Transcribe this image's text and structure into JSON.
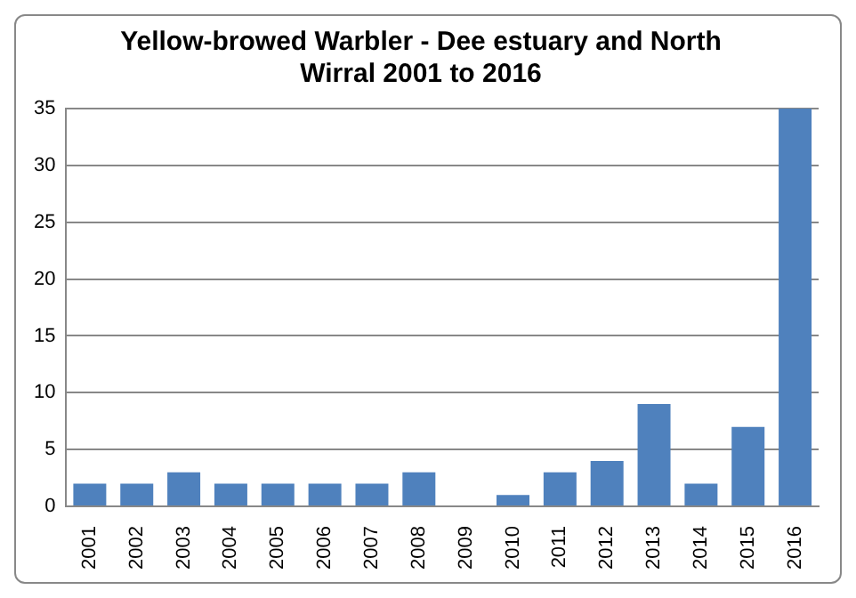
{
  "chart_data": {
    "type": "bar",
    "title": "Yellow-browed Warbler - Dee estuary and North Wirral 2001 to 2016",
    "categories": [
      "2001",
      "2002",
      "2003",
      "2004",
      "2005",
      "2006",
      "2007",
      "2008",
      "2009",
      "2010",
      "2011",
      "2012",
      "2013",
      "2014",
      "2015",
      "2016"
    ],
    "values": [
      2,
      2,
      3,
      2,
      2,
      2,
      2,
      3,
      0,
      1,
      3,
      4,
      9,
      2,
      7,
      35
    ],
    "color": "#4f81bd",
    "ylim": [
      0,
      35
    ],
    "yticks": [
      0,
      5,
      10,
      15,
      20,
      25,
      30,
      35
    ],
    "grid": "y",
    "legend": false
  }
}
